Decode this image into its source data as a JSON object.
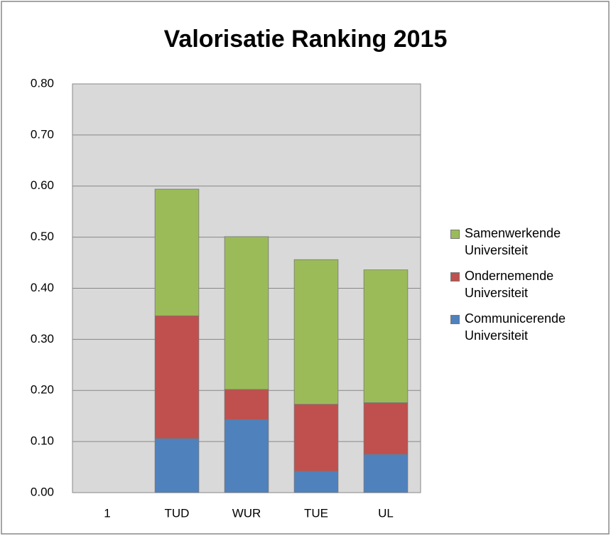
{
  "chart_data": {
    "type": "stacked-bar",
    "title": "Valorisatie Ranking 2015",
    "categories": [
      "1",
      "TUD",
      "WUR",
      "TUE",
      "UL"
    ],
    "series": [
      {
        "name": "Communicerende Universiteit",
        "color": "#4f81bd",
        "values": [
          null,
          0.106,
          0.143,
          0.042,
          0.075
        ]
      },
      {
        "name": "Ondernemende Universiteit",
        "color": "#c0504d",
        "values": [
          null,
          0.24,
          0.059,
          0.131,
          0.101
        ]
      },
      {
        "name": "Samenwerkende Universiteit",
        "color": "#9bbb59",
        "values": [
          null,
          0.248,
          0.299,
          0.283,
          0.26
        ]
      }
    ],
    "ylim": [
      0,
      0.8
    ],
    "yticks": [
      {
        "value": 0,
        "label": "0.00"
      },
      {
        "value": 0.1,
        "label": "0.10"
      },
      {
        "value": 0.2,
        "label": "0.20"
      },
      {
        "value": 0.3,
        "label": "0.30"
      },
      {
        "value": 0.4,
        "label": "0.40"
      },
      {
        "value": 0.5,
        "label": "0.50"
      },
      {
        "value": 0.6,
        "label": "0.60"
      },
      {
        "value": 0.7,
        "label": "0.70"
      },
      {
        "value": 0.8,
        "label": "0.80"
      }
    ],
    "grid": true,
    "legend": "right"
  }
}
